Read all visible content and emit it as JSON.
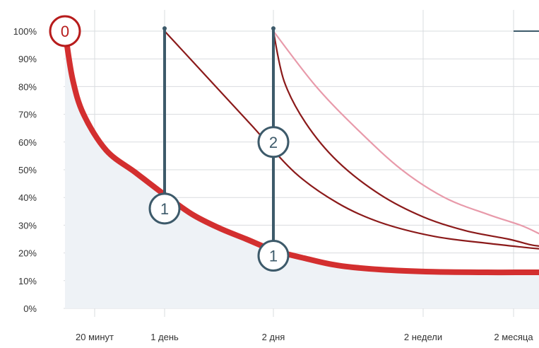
{
  "chart_data": {
    "type": "line",
    "title": "",
    "xlabel": "",
    "ylabel": "",
    "y_tick_labels": [
      "0%",
      "10%",
      "20%",
      "30%",
      "40%",
      "50%",
      "60%",
      "70%",
      "80%",
      "90%",
      "100%"
    ],
    "x_tick_labels": [
      "20 минут",
      "1 день",
      "2 дня",
      "2 недели",
      "2 месяца"
    ],
    "grid": true,
    "ylim": [
      0,
      100
    ],
    "colors": {
      "main_curve": "#d32f2f",
      "repeat_curve": "#8b1a1a",
      "light_curve": "#e89aaa",
      "marker": "#3d5a6a",
      "start_marker": "#b71c1c",
      "area_fill": "#eef2f6"
    },
    "series": [
      {
        "values": [
          {
            "x": 0.0,
            "y": 100
          },
          {
            "x": 0.1,
            "y": 83
          },
          {
            "x": 0.25,
            "y": 70
          },
          {
            "x": 0.5,
            "y": 57
          },
          {
            "x": 0.75,
            "y": 49
          },
          {
            "x": 1.0,
            "y": 41
          },
          {
            "x": 1.25,
            "y": 34
          },
          {
            "x": 1.5,
            "y": 29
          },
          {
            "x": 1.75,
            "y": 25
          },
          {
            "x": 2.0,
            "y": 21
          },
          {
            "x": 2.3,
            "y": 18
          },
          {
            "x": 2.6,
            "y": 15.5
          },
          {
            "x": 3.0,
            "y": 14
          },
          {
            "x": 3.5,
            "y": 13.2
          },
          {
            "x": 4.0,
            "y": 13
          },
          {
            "x": 4.5,
            "y": 13
          },
          {
            "x": 4.8,
            "y": 13
          }
        ]
      },
      {
        "values": [
          {
            "x": 1.0,
            "y": 100
          },
          {
            "x": 1.4,
            "y": 83
          },
          {
            "x": 1.8,
            "y": 66
          },
          {
            "x": 2.2,
            "y": 49
          },
          {
            "x": 2.6,
            "y": 38
          },
          {
            "x": 3.0,
            "y": 31
          },
          {
            "x": 3.5,
            "y": 26
          },
          {
            "x": 4.0,
            "y": 23.5
          },
          {
            "x": 4.5,
            "y": 22
          },
          {
            "x": 4.8,
            "y": 21.5
          }
        ]
      },
      {
        "values": [
          {
            "x": 2.0,
            "y": 100
          },
          {
            "x": 2.1,
            "y": 82
          },
          {
            "x": 2.3,
            "y": 67
          },
          {
            "x": 2.6,
            "y": 53
          },
          {
            "x": 3.0,
            "y": 41
          },
          {
            "x": 3.4,
            "y": 33
          },
          {
            "x": 3.8,
            "y": 28
          },
          {
            "x": 4.2,
            "y": 25
          },
          {
            "x": 4.6,
            "y": 23
          },
          {
            "x": 4.8,
            "y": 22.5
          }
        ]
      },
      {
        "values": [
          {
            "x": 2.0,
            "y": 100
          },
          {
            "x": 2.4,
            "y": 80
          },
          {
            "x": 2.8,
            "y": 64
          },
          {
            "x": 3.2,
            "y": 50
          },
          {
            "x": 3.6,
            "y": 40
          },
          {
            "x": 4.0,
            "y": 34
          },
          {
            "x": 4.4,
            "y": 30
          },
          {
            "x": 4.8,
            "y": 27
          }
        ]
      }
    ],
    "markers": [
      {
        "label": "0",
        "x": 0.0,
        "y": 100
      },
      {
        "label": "1",
        "x": 1.0,
        "y": 36
      },
      {
        "label": "1",
        "x": 2.0,
        "y": 19
      },
      {
        "label": "2",
        "x": 2.0,
        "y": 60
      }
    ],
    "vertical_markers": [
      {
        "x": 1.0,
        "y_from": 36,
        "y_to": 101
      },
      {
        "x": 2.0,
        "y_from": 19,
        "y_to": 101
      }
    ]
  }
}
